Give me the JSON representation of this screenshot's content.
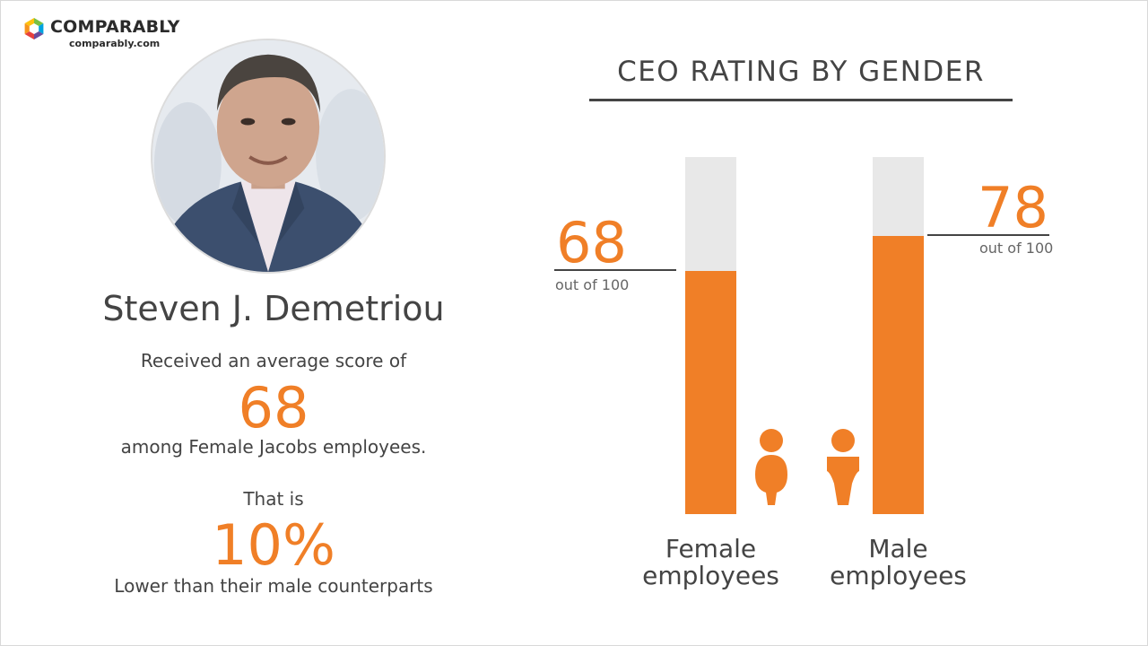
{
  "brand": {
    "name": "COMPARABLY",
    "url": "comparably.com",
    "logo_icon": "comparably-logo-icon"
  },
  "profile": {
    "name": "Steven J. Demetriou",
    "avatar_icon": "ceo-photo"
  },
  "summary": {
    "received_text": "Received an average score of",
    "score": "68",
    "among_text": "among Female Jacobs employees.",
    "that_is_text": "That is",
    "difference": "10%",
    "comparison_text": "Lower than their male counterparts"
  },
  "colors": {
    "accent": "#f07f27",
    "bar_background": "#e8e8e8",
    "text": "#444444"
  },
  "chart_data": {
    "type": "bar",
    "title": "CEO RATING BY GENDER",
    "categories": [
      "Female employees",
      "Male employees"
    ],
    "category_lines": [
      [
        "Female",
        "employees"
      ],
      [
        "Male",
        "employees"
      ]
    ],
    "values": [
      68,
      78
    ],
    "value_labels": [
      "68",
      "78"
    ],
    "subtitle_labels": [
      "out of 100",
      "out of 100"
    ],
    "ylim": [
      0,
      100
    ],
    "icons": [
      "female-person-icon",
      "male-person-icon"
    ],
    "grid": false
  }
}
